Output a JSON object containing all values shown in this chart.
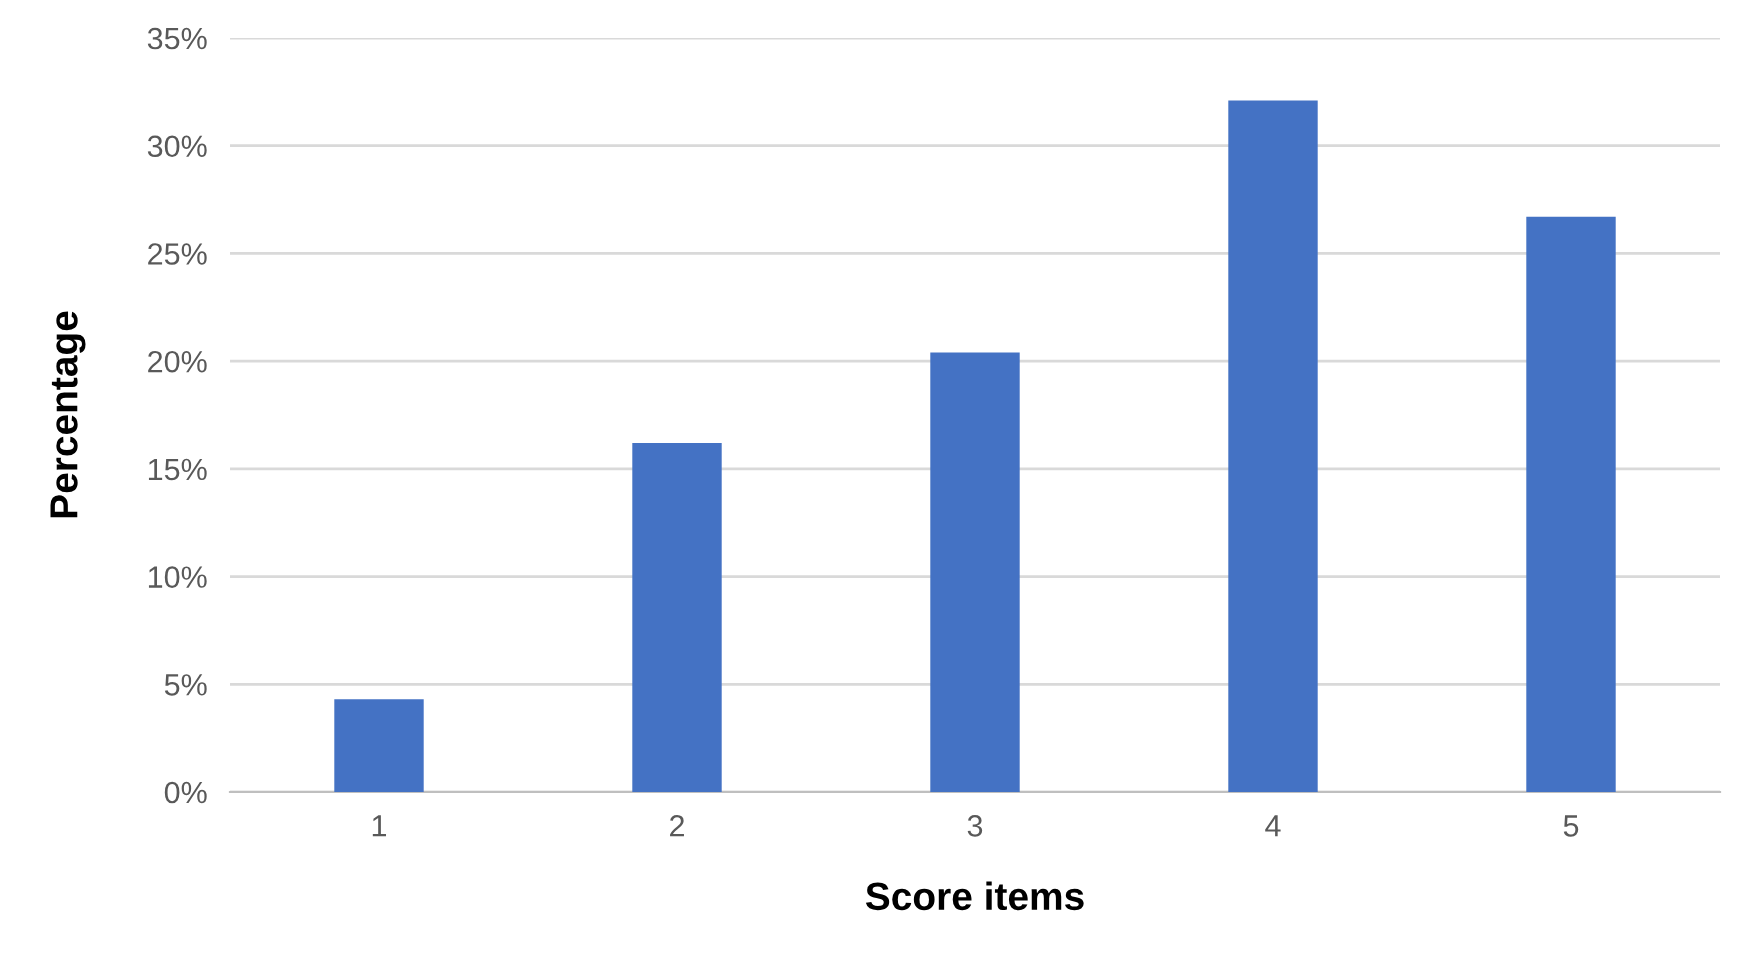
{
  "chart_data": {
    "type": "bar",
    "xlabel": "Score items",
    "ylabel": "Percentage",
    "categories": [
      "1",
      "2",
      "3",
      "4",
      "5"
    ],
    "values": [
      4.3,
      16.2,
      20.4,
      32.1,
      26.7
    ],
    "color": "#4472c4",
    "ylim": [
      0,
      35
    ],
    "yticks": [
      {
        "value": 0,
        "label": "0%"
      },
      {
        "value": 5,
        "label": "5%"
      },
      {
        "value": 10,
        "label": "10%"
      },
      {
        "value": 15,
        "label": "15%"
      },
      {
        "value": 20,
        "label": "20%"
      },
      {
        "value": 25,
        "label": "25%"
      },
      {
        "value": 30,
        "label": "30%"
      },
      {
        "value": 35,
        "label": "35%"
      }
    ],
    "grid": "y"
  }
}
